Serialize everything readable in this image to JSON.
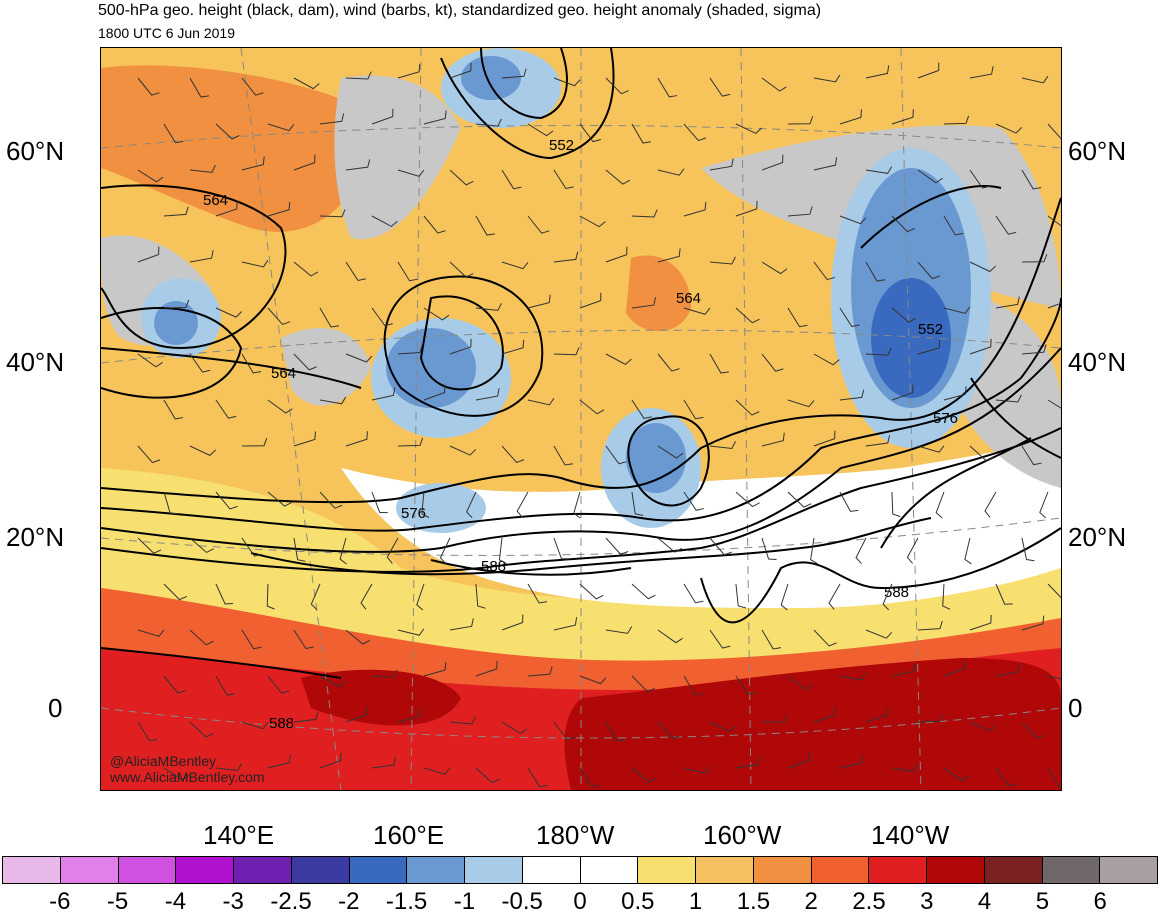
{
  "header": {
    "title": "500-hPa geo. height (black, dam), wind (barbs, kt), standardized geo. height anomaly (shaded, sigma)",
    "timestamp": "1800 UTC 6 Jun 2019"
  },
  "map": {
    "lat_labels": {
      "n60": "60°N",
      "n40": "40°N",
      "n20": "20°N",
      "eq": "0"
    },
    "lon_labels": [
      "140°E",
      "160°E",
      "180°W",
      "160°W",
      "140°W"
    ],
    "contour_labels": {
      "c552a": "552",
      "c552b": "552",
      "c564a": "564",
      "c564b": "564",
      "c564c": "564",
      "c576a": "576",
      "c576b": "576",
      "c588a": "588",
      "c588b": "588",
      "c588c": "588"
    },
    "credits": {
      "handle": "@AliciaMBentley",
      "site": "www.AliciaMBentley.com"
    }
  },
  "legend": {
    "colors": [
      "#e8b8e8",
      "#e080e8",
      "#d050e0",
      "#b010d0",
      "#7020b0",
      "#3a3aa0",
      "#3a6ac0",
      "#6a98d0",
      "#a8cce8",
      "#ffffff",
      "#ffffff",
      "#f8e070",
      "#f4c060",
      "#f09040",
      "#f06030",
      "#e02020",
      "#b00808",
      "#7a2222",
      "#706868",
      "#a8a0a0"
    ],
    "labels": [
      "-6",
      "-5",
      "-4",
      "-3",
      "-2.5",
      "-2",
      "-1.5",
      "-1",
      "-0.5",
      "0",
      "0.5",
      "1",
      "1.5",
      "2",
      "2.5",
      "3",
      "4",
      "5",
      "6"
    ]
  }
}
